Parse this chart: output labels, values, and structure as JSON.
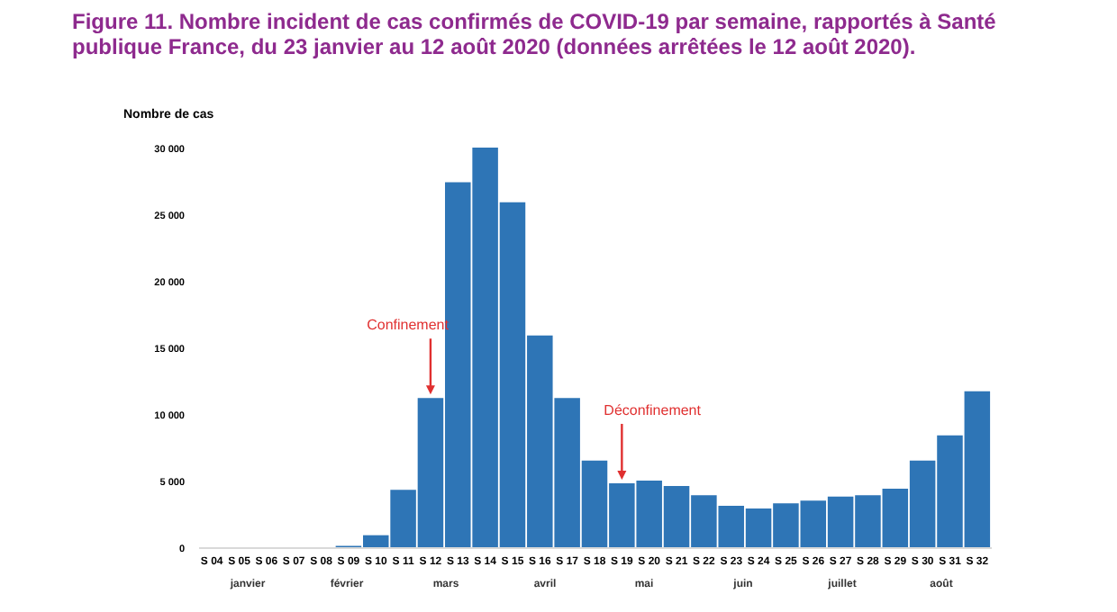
{
  "chart_data": {
    "type": "bar",
    "title": "Figure 11. Nombre incident de cas confirmés de COVID-19 par semaine, rapportés à Santé publique France, du 23 janvier au 12 août 2020 (données arrêtées le 12 août 2020).",
    "ylabel": "Nombre de cas",
    "categories": [
      "S 04",
      "S 05",
      "S 06",
      "S 07",
      "S 08",
      "S 09",
      "S 10",
      "S 11",
      "S 12",
      "S 13",
      "S 14",
      "S 15",
      "S 16",
      "S 17",
      "S 18",
      "S 19",
      "S 20",
      "S 21",
      "S 22",
      "S 23",
      "S 24",
      "S 25",
      "S 26",
      "S 27",
      "S 28",
      "S 29",
      "S 30",
      "S 31",
      "S 32"
    ],
    "values": [
      0,
      0,
      0,
      0,
      0,
      100,
      900,
      4300,
      11200,
      27400,
      30000,
      25900,
      15900,
      11200,
      6500,
      4800,
      5000,
      4600,
      3900,
      3100,
      2900,
      3300,
      3500,
      3800,
      3900,
      4400,
      6500,
      8400,
      11700
    ],
    "color": "#2e75b6",
    "ylim": [
      0,
      30000
    ],
    "yticks": [
      0,
      {
        "value": 5000,
        "label": "5 000"
      },
      {
        "value": 10000,
        "label": "10 000"
      },
      {
        "value": 15000,
        "label": "15 000"
      },
      {
        "value": 20000,
        "label": "20 000"
      },
      {
        "value": 25000,
        "label": "25 000"
      },
      {
        "value": 30000,
        "label": "30 000"
      }
    ],
    "annotations": [
      {
        "text": "Confinement",
        "x": "S 12",
        "y": 11200
      },
      {
        "text": "Déconfinement",
        "x": "S 19",
        "y": 4800
      },
      "janvier",
      "février",
      "mars",
      "avril",
      "mai",
      "juin",
      "juillet",
      "août"
    ]
  }
}
